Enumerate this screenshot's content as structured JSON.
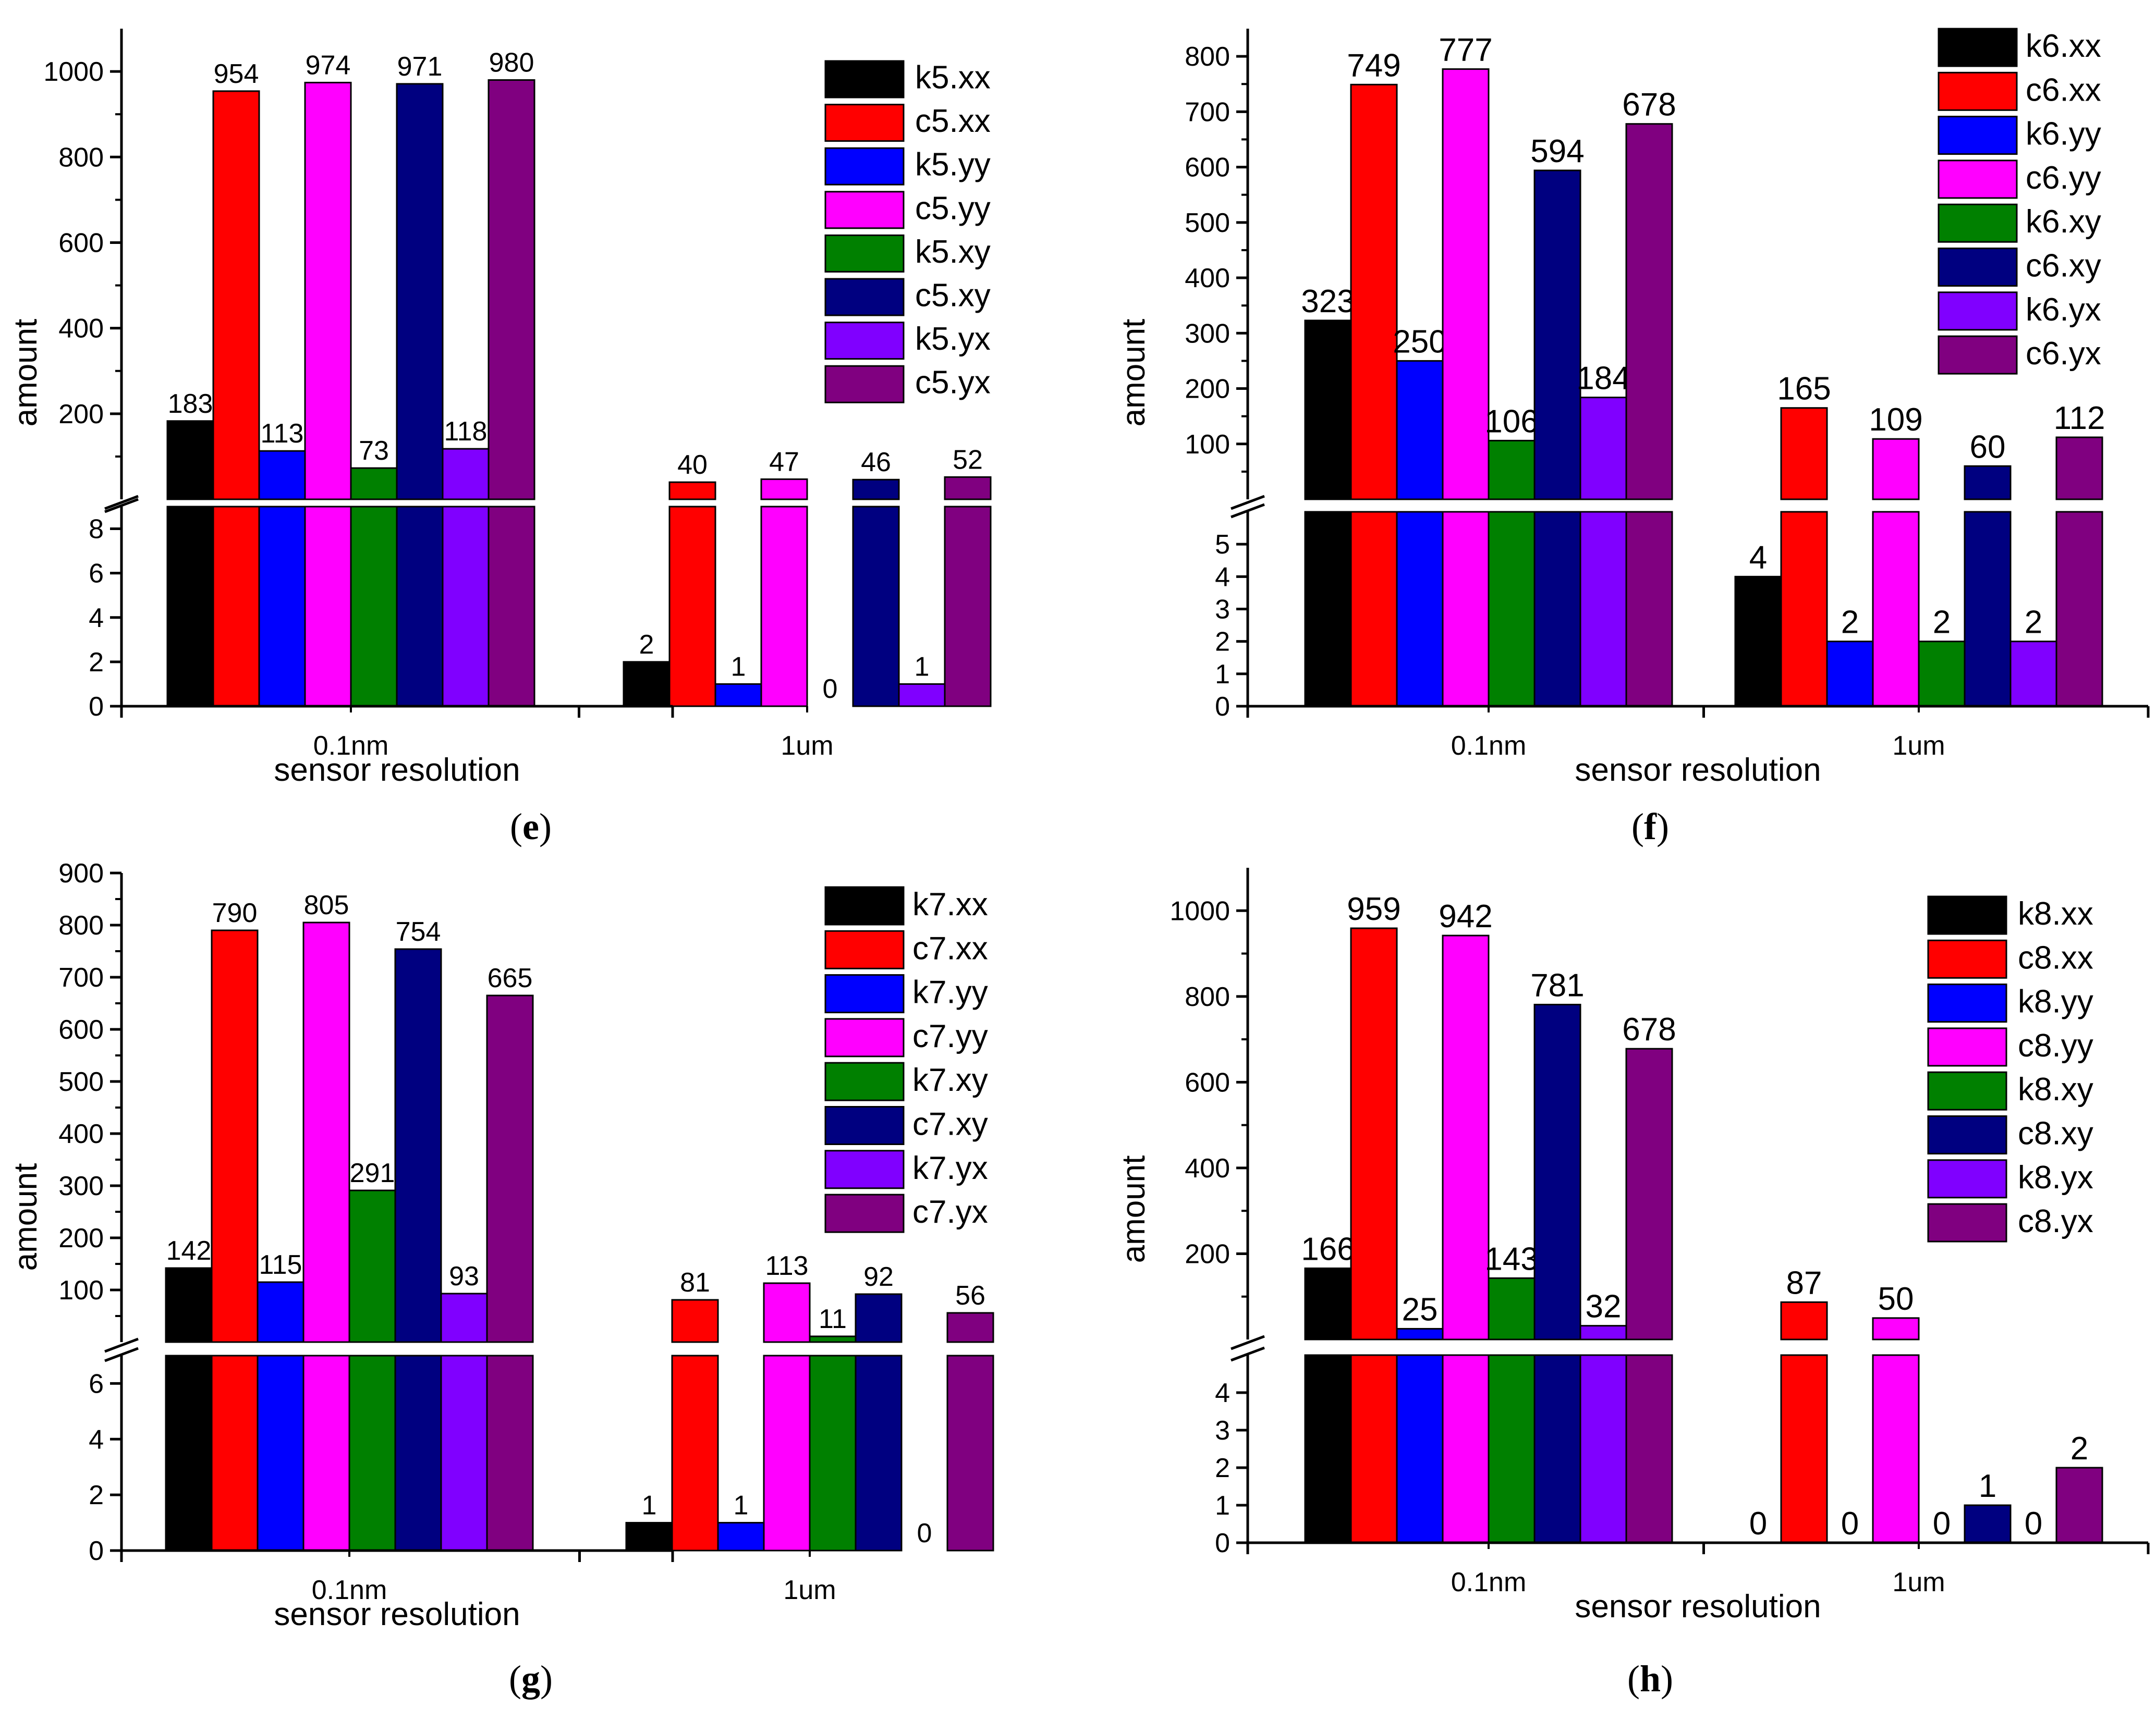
{
  "colors": {
    "black": "#000000",
    "red": "#ff0000",
    "blue": "#0000ff",
    "magenta": "#ff00ff",
    "green": "#008000",
    "navy": "#000080",
    "violet": "#8000ff",
    "purple": "#800080"
  },
  "chart_data": [
    {
      "type": "bar",
      "panel": "e",
      "caption": "e",
      "categories": [
        "0.1nm",
        "1um"
      ],
      "xlabel": "sensor resolution",
      "ylabel": "amount",
      "axis_break": true,
      "lower_ylim": [
        0,
        9
      ],
      "lower_ticks": [
        0,
        2,
        4,
        6,
        8
      ],
      "upper_ylim": [
        0,
        1100
      ],
      "upper_ticks": [
        200,
        400,
        600,
        800,
        1000
      ],
      "series": [
        {
          "name": "k5.xx",
          "color": "black",
          "values": [
            183,
            2
          ],
          "labels": [
            "183",
            "2"
          ]
        },
        {
          "name": "c5.xx",
          "color": "red",
          "values": [
            954,
            40
          ],
          "labels": [
            "954",
            "40"
          ]
        },
        {
          "name": "k5.yy",
          "color": "blue",
          "values": [
            113,
            1
          ],
          "labels": [
            "113",
            "1"
          ]
        },
        {
          "name": "c5.yy",
          "color": "magenta",
          "values": [
            974,
            47
          ],
          "labels": [
            "974",
            "47"
          ]
        },
        {
          "name": "k5.xy",
          "color": "green",
          "values": [
            73,
            0
          ],
          "labels": [
            "73",
            "0"
          ]
        },
        {
          "name": "c5.xy",
          "color": "navy",
          "values": [
            971,
            46
          ],
          "labels": [
            "971",
            "46"
          ]
        },
        {
          "name": "k5.yx",
          "color": "violet",
          "values": [
            118,
            1
          ],
          "labels": [
            "118",
            "1"
          ]
        },
        {
          "name": "c5.yx",
          "color": "purple",
          "values": [
            980,
            52
          ],
          "labels": [
            "980",
            "52"
          ]
        }
      ]
    },
    {
      "type": "bar",
      "panel": "f",
      "caption": "f",
      "categories": [
        "0.1nm",
        "1um"
      ],
      "xlabel": "sensor resolution",
      "ylabel": "amount",
      "axis_break": true,
      "lower_ylim": [
        0,
        6
      ],
      "lower_ticks": [
        0,
        1,
        2,
        3,
        4,
        5
      ],
      "upper_ylim": [
        0,
        850
      ],
      "upper_ticks": [
        100,
        200,
        300,
        400,
        500,
        600,
        700,
        800
      ],
      "series": [
        {
          "name": "k6.xx",
          "color": "black",
          "values": [
            323,
            4
          ],
          "labels": [
            "323",
            "4"
          ]
        },
        {
          "name": "c6.xx",
          "color": "red",
          "values": [
            749,
            165
          ],
          "labels": [
            "749",
            "165"
          ]
        },
        {
          "name": "k6.yy",
          "color": "blue",
          "values": [
            250,
            2
          ],
          "labels": [
            "250",
            "2"
          ]
        },
        {
          "name": "c6.yy",
          "color": "magenta",
          "values": [
            777,
            109
          ],
          "labels": [
            "777",
            "109"
          ]
        },
        {
          "name": "k6.xy",
          "color": "green",
          "values": [
            106,
            2
          ],
          "labels": [
            "106",
            "2"
          ]
        },
        {
          "name": "c6.xy",
          "color": "navy",
          "values": [
            594,
            60
          ],
          "labels": [
            "594",
            "60"
          ]
        },
        {
          "name": "k6.yx",
          "color": "violet",
          "values": [
            184,
            2
          ],
          "labels": [
            "184",
            "2"
          ]
        },
        {
          "name": "c6.yx",
          "color": "purple",
          "values": [
            678,
            112
          ],
          "labels": [
            "678",
            "112"
          ]
        }
      ]
    },
    {
      "type": "bar",
      "panel": "g",
      "caption": "g",
      "categories": [
        "0.1nm",
        "1um"
      ],
      "xlabel": "sensor resolution",
      "ylabel": "amount",
      "axis_break": true,
      "lower_ylim": [
        0,
        7
      ],
      "lower_ticks": [
        0,
        2,
        4,
        6
      ],
      "upper_ylim": [
        0,
        900
      ],
      "upper_ticks": [
        100,
        200,
        300,
        400,
        500,
        600,
        700,
        800,
        900
      ],
      "series": [
        {
          "name": "k7.xx",
          "color": "black",
          "values": [
            142,
            1
          ],
          "labels": [
            "142",
            "1"
          ]
        },
        {
          "name": "c7.xx",
          "color": "red",
          "values": [
            790,
            81
          ],
          "labels": [
            "790",
            "81"
          ]
        },
        {
          "name": "k7.yy",
          "color": "blue",
          "values": [
            115,
            1
          ],
          "labels": [
            "115",
            "1"
          ]
        },
        {
          "name": "c7.yy",
          "color": "magenta",
          "values": [
            805,
            113
          ],
          "labels": [
            "805",
            "113"
          ]
        },
        {
          "name": "k7.xy",
          "color": "green",
          "values": [
            291,
            11
          ],
          "labels": [
            "291",
            "11"
          ]
        },
        {
          "name": "c7.xy",
          "color": "navy",
          "values": [
            754,
            92
          ],
          "labels": [
            "754",
            "92"
          ]
        },
        {
          "name": "k7.yx",
          "color": "violet",
          "values": [
            93,
            0
          ],
          "labels": [
            "93",
            "0"
          ]
        },
        {
          "name": "c7.yx",
          "color": "purple",
          "values": [
            665,
            56
          ],
          "labels": [
            "665",
            "56"
          ]
        }
      ]
    },
    {
      "type": "bar",
      "panel": "h",
      "caption": "h",
      "categories": [
        "0.1nm",
        "1um"
      ],
      "xlabel": "sensor resolution",
      "ylabel": "amount",
      "axis_break": true,
      "lower_ylim": [
        0,
        5
      ],
      "lower_ticks": [
        0,
        1,
        2,
        3,
        4
      ],
      "upper_ylim": [
        0,
        1100
      ],
      "upper_ticks": [
        200,
        400,
        600,
        800,
        1000
      ],
      "series": [
        {
          "name": "k8.xx",
          "color": "black",
          "values": [
            166,
            0
          ],
          "labels": [
            "166",
            "0"
          ]
        },
        {
          "name": "c8.xx",
          "color": "red",
          "values": [
            959,
            87
          ],
          "labels": [
            "959",
            "87"
          ]
        },
        {
          "name": "k8.yy",
          "color": "blue",
          "values": [
            25,
            0
          ],
          "labels": [
            "25",
            "0"
          ]
        },
        {
          "name": "c8.yy",
          "color": "magenta",
          "values": [
            942,
            50
          ],
          "labels": [
            "942",
            "50"
          ]
        },
        {
          "name": "k8.xy",
          "color": "green",
          "values": [
            143,
            0
          ],
          "labels": [
            "143",
            "0"
          ]
        },
        {
          "name": "c8.xy",
          "color": "navy",
          "values": [
            781,
            1
          ],
          "labels": [
            "781",
            "1"
          ]
        },
        {
          "name": "k8.yx",
          "color": "violet",
          "values": [
            32,
            0
          ],
          "labels": [
            "32",
            "0"
          ]
        },
        {
          "name": "c8.yx",
          "color": "purple",
          "values": [
            678,
            2
          ],
          "labels": [
            "678",
            "2"
          ]
        }
      ]
    }
  ]
}
